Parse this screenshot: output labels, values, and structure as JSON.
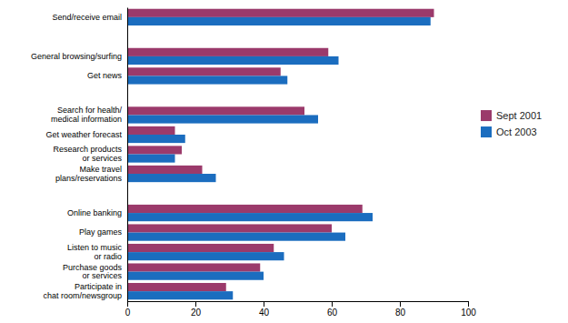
{
  "chart_data": {
    "type": "bar",
    "orientation": "horizontal",
    "categories": [
      "Send/receive email",
      null,
      "General browsing/surfing",
      "Get news",
      null,
      "Search for health/\nmedical information",
      "Get weather forecast",
      "Research products\nor services",
      "Make travel\nplans/reservations",
      null,
      "Online banking",
      "Play games",
      "Listen to music\nor radio",
      "Purchase goods\nor services",
      "Participate in\nchat room/newsgroup"
    ],
    "series": [
      {
        "name": "Sept 2001",
        "color": "#9B3A6B",
        "values": [
          90,
          0,
          59,
          45,
          0,
          52,
          14,
          16,
          22,
          0,
          69,
          60,
          43,
          39,
          29
        ]
      },
      {
        "name": "Oct 2003",
        "color": "#1B6DBF",
        "values": [
          89,
          0,
          62,
          47,
          0,
          56,
          17,
          14,
          26,
          0,
          72,
          64,
          46,
          40,
          31
        ]
      }
    ],
    "xlim": [
      0,
      100
    ],
    "xticks": [
      0,
      20,
      40,
      60,
      80,
      100
    ],
    "grid": false,
    "legend": "right"
  }
}
